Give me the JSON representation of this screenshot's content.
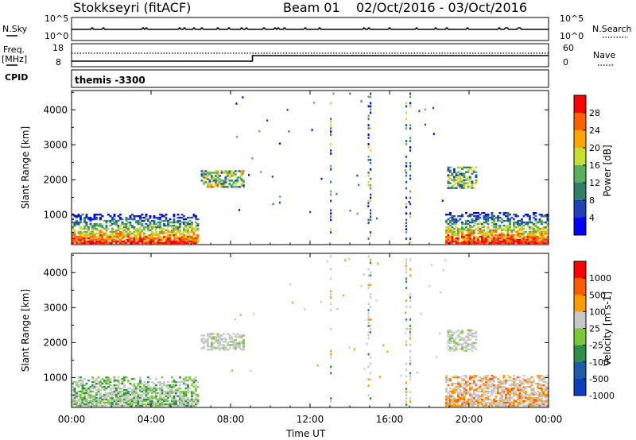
{
  "header": {
    "station": "Stokkseyri (fitACF)",
    "beam": "Beam 01",
    "date_range": "02/Oct/2016 - 03/Oct/2016"
  },
  "top_panels": {
    "nsky_label": "N.Sky",
    "nsky_ticks": [
      "10^5",
      "10^0"
    ],
    "nsearch_label": "N.Search",
    "nsearch_ticks": [
      "10^5",
      "10^0"
    ],
    "freq_label_1": "Freq.",
    "freq_label_2": "[MHz]",
    "freq_ticks": [
      "18",
      "8"
    ],
    "nave_label": "Nave",
    "nave_ticks": [
      "60",
      "0"
    ],
    "cpid_label": "CPID",
    "cpid_value": "themis -3300"
  },
  "colors": {
    "power": [
      "#0000ff",
      "#2040b8",
      "#2f7f6a",
      "#56b05c",
      "#c8dd32",
      "#ffa500",
      "#ff6000",
      "#ff0000"
    ],
    "velocity": [
      "#0e3dbf",
      "#1d5aa8",
      "#2e8f4b",
      "#78c83a",
      "#c8c8c8",
      "#ff9a00",
      "#ff5a00",
      "#ff0000"
    ]
  },
  "chart_data": [
    {
      "type": "heatmap",
      "name": "power",
      "ylabel": "Slant Range [km]",
      "yticks": [
        "1000",
        "2000",
        "3000",
        "4000"
      ],
      "ylim": [
        150,
        4550
      ],
      "xlim": [
        0,
        24
      ],
      "xticks": [
        "00:00",
        "04:00",
        "08:00",
        "12:00",
        "16:00",
        "20:00",
        "00:00"
      ],
      "colorbar_label": "Power [dB]",
      "colorbar_ticks": [
        "4",
        "8",
        "12",
        "16",
        "20",
        "24",
        "28"
      ],
      "clim": [
        0,
        32
      ],
      "regions": [
        {
          "t0": 0.0,
          "t1": 6.3,
          "r0": 180,
          "r1": 1000
        },
        {
          "t0": 6.5,
          "t1": 8.6,
          "r0": 1780,
          "r1": 2250
        },
        {
          "t0": 18.9,
          "t1": 20.4,
          "r0": 1750,
          "r1": 2380
        },
        {
          "t0": 18.8,
          "t1": 24.0,
          "r0": 180,
          "r1": 1050
        }
      ]
    },
    {
      "type": "heatmap",
      "name": "velocity",
      "ylabel": "Slant Range [km]",
      "yticks": [
        "1000",
        "2000",
        "3000",
        "4000"
      ],
      "ylim": [
        150,
        4550
      ],
      "xlim": [
        0,
        24
      ],
      "xticks": [
        "00:00",
        "04:00",
        "08:00",
        "12:00",
        "16:00",
        "20:00",
        "00:00"
      ],
      "xlabel": "Time UT",
      "colorbar_label": "Velocity [m s-1]",
      "colorbar_ticks": [
        "1000",
        "500",
        "100",
        "25",
        "-25",
        "-100",
        "-500",
        "-1000"
      ],
      "regions": [
        {
          "t0": 0.0,
          "t1": 6.3,
          "r0": 180,
          "r1": 1000
        },
        {
          "t0": 6.5,
          "t1": 8.6,
          "r0": 1780,
          "r1": 2250
        },
        {
          "t0": 18.9,
          "t1": 20.4,
          "r0": 1750,
          "r1": 2380
        },
        {
          "t0": 18.8,
          "t1": 24.0,
          "r0": 180,
          "r1": 1050
        }
      ]
    }
  ]
}
